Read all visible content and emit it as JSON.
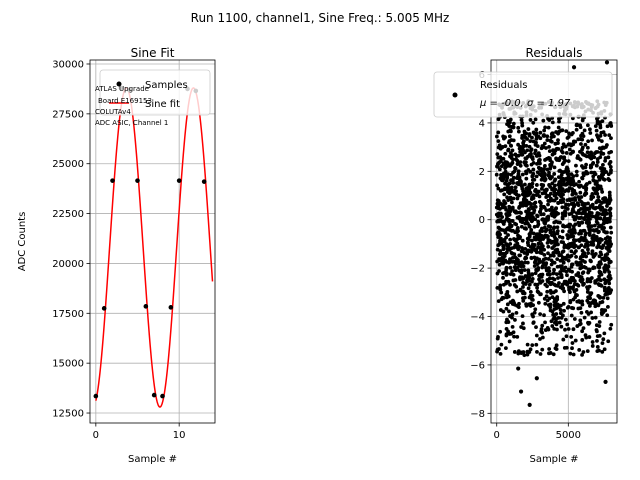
{
  "figure": {
    "suptitle": "Run 1100, channel1, Sine Freq.: 5.005 MHz"
  },
  "chart_data": [
    {
      "type": "line",
      "title": "Sine Fit",
      "xlabel": "Sample #",
      "ylabel": "ADC Counts",
      "xlim": [
        -0.7,
        14.3
      ],
      "ylim": [
        12000,
        30200
      ],
      "x_ticks": [
        0,
        10
      ],
      "y_ticks": [
        12500,
        15000,
        17500,
        20000,
        22500,
        25000,
        27500,
        30000
      ],
      "grid": true,
      "legend": {
        "position": "top-right",
        "entries": [
          "Samples",
          "Sine fit"
        ]
      },
      "annotation_lines": [
        "ATLAS Upgrade",
        "Board E169153",
        "COLUTAv4",
        "ADC ASIC, Channel 1"
      ],
      "series": [
        {
          "name": "Samples",
          "kind": "scatter",
          "color": "#000000",
          "x": [
            0,
            1,
            2,
            3,
            4,
            5,
            6,
            7,
            8,
            9,
            10,
            11,
            12,
            13
          ],
          "y": [
            13350,
            17750,
            24150,
            28800,
            28700,
            24150,
            17850,
            13400,
            13350,
            17800,
            24150,
            28750,
            28650,
            24100
          ]
        },
        {
          "name": "Sine fit",
          "kind": "line",
          "color": "#ff0000",
          "function": {
            "offset": 20800,
            "amplitude": 8000,
            "period": 8.05,
            "phase_zero_x": 1.65,
            "x_range": [
              0,
              14
            ]
          }
        }
      ]
    },
    {
      "type": "scatter",
      "title": "Residuals",
      "xlabel": "Sample #",
      "xlim": [
        -400,
        8400
      ],
      "ylim": [
        -8.4,
        6.6
      ],
      "x_ticks": [
        0,
        5000
      ],
      "y_ticks": [
        -8,
        -6,
        -4,
        -2,
        0,
        2,
        4,
        6
      ],
      "grid": true,
      "legend": {
        "position": "top-right",
        "entries": [
          "Residuals",
          "μ = -0.0, σ = 1.97"
        ]
      },
      "series": [
        {
          "name": "Residuals",
          "color": "#000000",
          "n_points": 8000,
          "mean": 0.0,
          "sigma": 1.97,
          "x_range": [
            0,
            7999
          ],
          "outliers": [
            [
              2300,
              -7.65
            ],
            [
              1700,
              -7.1
            ],
            [
              2800,
              -6.55
            ],
            [
              1500,
              -6.15
            ],
            [
              7600,
              -6.7
            ],
            [
              7700,
              6.5
            ],
            [
              5400,
              6.3
            ]
          ]
        }
      ]
    }
  ]
}
